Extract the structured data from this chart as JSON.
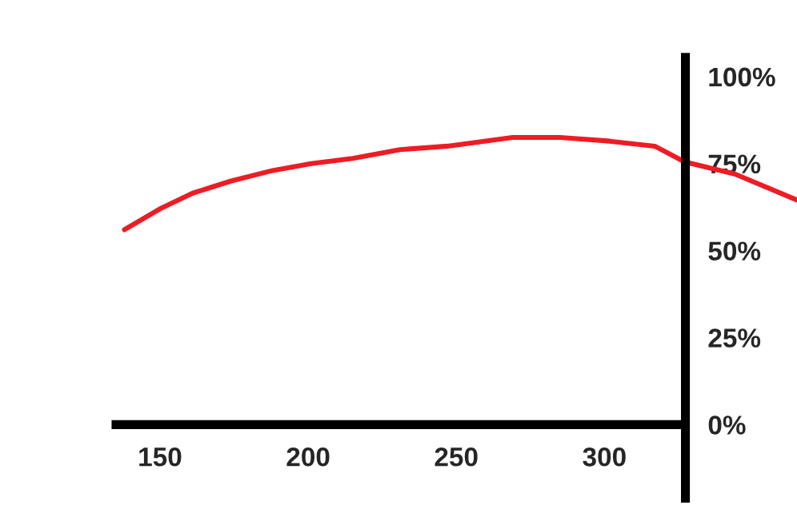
{
  "chart_data": {
    "type": "line",
    "x": [
      138,
      150,
      161,
      174,
      188,
      201,
      215,
      231,
      247,
      269,
      285,
      301,
      317,
      327,
      344,
      365
    ],
    "series": [
      {
        "color": "#ee1c24",
        "values": [
          56,
          62,
          66.5,
          70,
          73,
          75,
          76.5,
          79,
          80,
          82.5,
          82.5,
          81.5,
          80,
          75.5,
          72,
          64.5
        ]
      }
    ],
    "xlim": [
      96,
      365
    ],
    "ylim": [
      -30,
      122
    ],
    "xticks": [
      150,
      200,
      250,
      300
    ],
    "yticks": [
      {
        "value": 0,
        "label": "0%"
      },
      {
        "value": 25,
        "label": "25%"
      },
      {
        "value": 50,
        "label": "50%"
      },
      {
        "value": 75,
        "label": "75%"
      },
      {
        "value": 100,
        "label": "100%"
      }
    ],
    "grid": false,
    "legend": false
  }
}
